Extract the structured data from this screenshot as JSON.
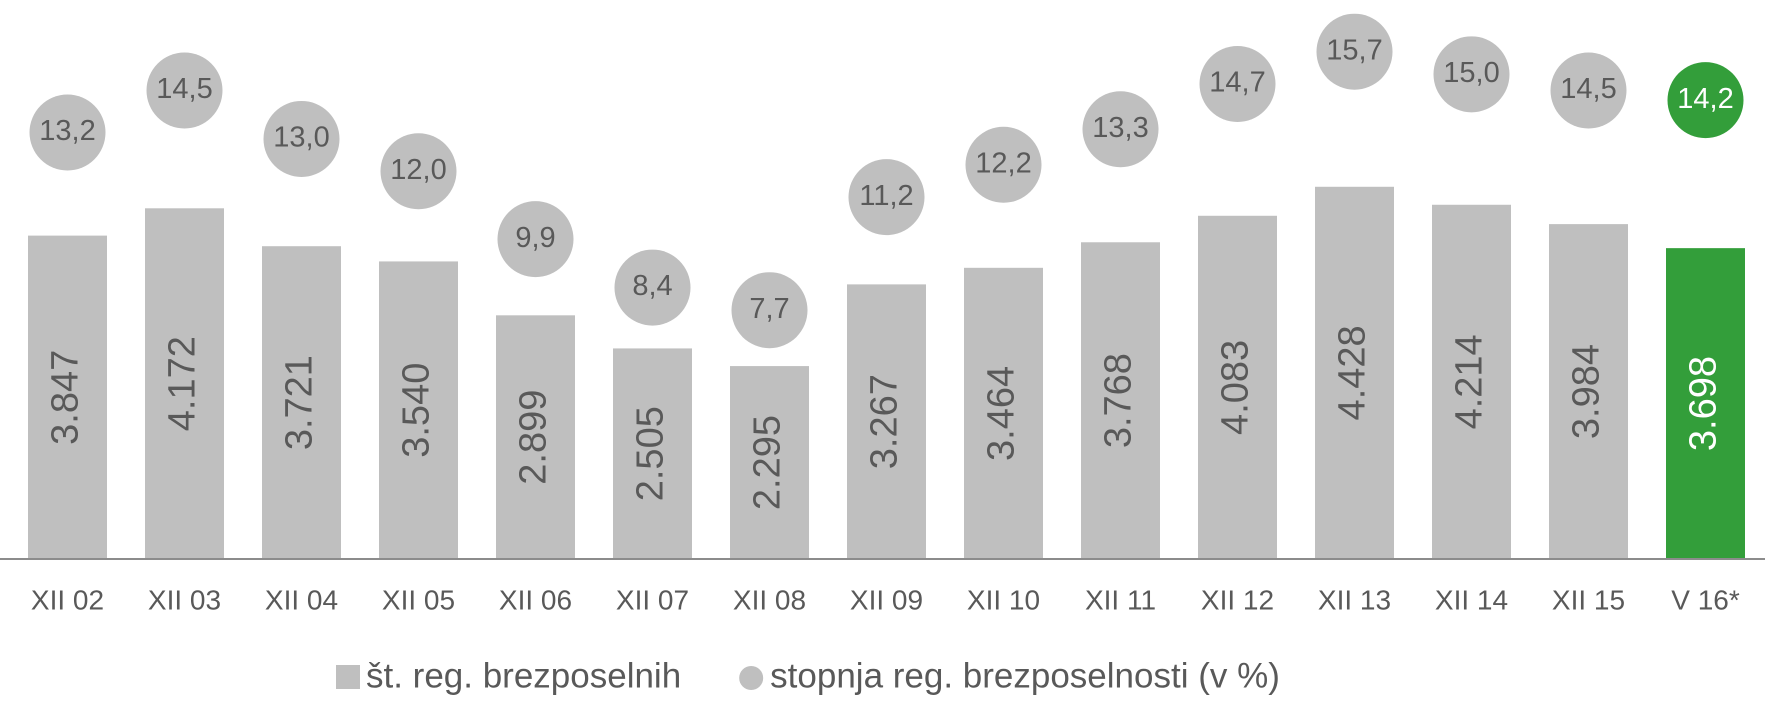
{
  "chart_data": {
    "type": "bar",
    "categories": [
      "XII 02",
      "XII 03",
      "XII 04",
      "XII 05",
      "XII 06",
      "XII 07",
      "XII 08",
      "XII 09",
      "XII 10",
      "XII 11",
      "XII 12",
      "XII 13",
      "XII 14",
      "XII 15",
      "V 16*"
    ],
    "series": [
      {
        "name": "št. reg. brezposelnih",
        "type": "bar",
        "color": "#bfbfbf",
        "colors": [
          "#bfbfbf",
          "#bfbfbf",
          "#bfbfbf",
          "#bfbfbf",
          "#bfbfbf",
          "#bfbfbf",
          "#bfbfbf",
          "#bfbfbf",
          "#bfbfbf",
          "#bfbfbf",
          "#bfbfbf",
          "#bfbfbf",
          "#bfbfbf",
          "#bfbfbf",
          "#339e3a"
        ],
        "values": [
          3847,
          4172,
          3721,
          3540,
          2899,
          2505,
          2295,
          3267,
          3464,
          3768,
          4083,
          4428,
          4214,
          3984,
          3698
        ],
        "value_labels": [
          "3.847",
          "4.172",
          "3.721",
          "3.540",
          "2.899",
          "2.505",
          "2.295",
          "3.267",
          "3.464",
          "3.768",
          "4.083",
          "4.428",
          "4.214",
          "3.984",
          "3.698"
        ]
      },
      {
        "name": "stopnja reg. brezposelnosti (v %)",
        "type": "scatter",
        "axis": "y2",
        "color": "#bfbfbf",
        "colors": [
          "#bfbfbf",
          "#bfbfbf",
          "#bfbfbf",
          "#bfbfbf",
          "#bfbfbf",
          "#bfbfbf",
          "#bfbfbf",
          "#bfbfbf",
          "#bfbfbf",
          "#bfbfbf",
          "#bfbfbf",
          "#bfbfbf",
          "#bfbfbf",
          "#bfbfbf",
          "#339e3a"
        ],
        "values": [
          13.2,
          14.5,
          13.0,
          12.0,
          9.9,
          8.4,
          7.7,
          11.2,
          12.2,
          13.3,
          14.7,
          15.7,
          15.0,
          14.5,
          14.2
        ],
        "value_labels": [
          "13,2",
          "14,5",
          "13,0",
          "12,0",
          "9,9",
          "8,4",
          "7,7",
          "11,2",
          "12,2",
          "13,3",
          "14,7",
          "15,7",
          "15,0",
          "14,5",
          "14,2"
        ]
      }
    ],
    "ylim": [
      0,
      6650
    ],
    "y2lim": [
      0,
      17.3
    ],
    "legend": "bottom"
  }
}
